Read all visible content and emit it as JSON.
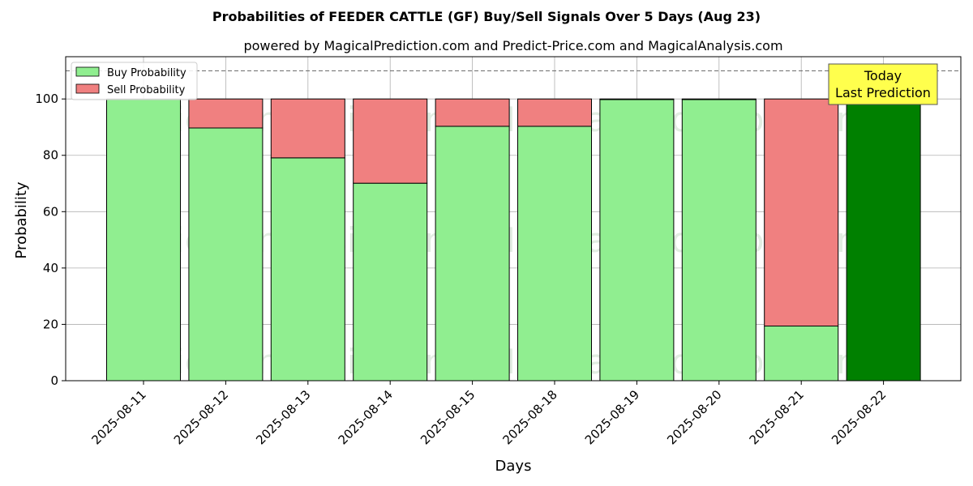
{
  "chart_data": {
    "type": "bar",
    "stacked": true,
    "title": "Probabilities of FEEDER CATTLE (GF) Buy/Sell Signals Over 5 Days (Aug 23)",
    "subtitle": "powered by MagicalPrediction.com and Predict-Price.com and MagicalAnalysis.com",
    "xlabel": "Days",
    "ylabel": "Probability",
    "categories": [
      "2025-08-11",
      "2025-08-12",
      "2025-08-13",
      "2025-08-14",
      "2025-08-15",
      "2025-08-18",
      "2025-08-19",
      "2025-08-20",
      "2025-08-21",
      "2025-08-22"
    ],
    "series": [
      {
        "name": "Buy Probability",
        "color": "#90ee90",
        "values": [
          100,
          89.7,
          79.1,
          70.1,
          90.3,
          90.3,
          99.8,
          99.8,
          19.4,
          100
        ]
      },
      {
        "name": "Sell Probability",
        "color": "#f08080",
        "values": [
          0,
          10.3,
          20.9,
          29.9,
          9.7,
          9.7,
          0.2,
          0.2,
          80.6,
          0
        ]
      }
    ],
    "highlight": {
      "index": 9,
      "color": "#008000"
    },
    "yticks": [
      0,
      20,
      40,
      60,
      80,
      100
    ],
    "ylim": [
      0,
      115
    ],
    "reference_line": {
      "y": 110,
      "style": "dashed"
    },
    "annotation": {
      "line1": "Today",
      "line2": "Last Prediction",
      "color": "#ffff4d"
    },
    "legend_position": "top-left",
    "grid": true,
    "watermarks": [
      "MagicalAnalysis.com",
      "MagicalPrediction.com"
    ]
  }
}
